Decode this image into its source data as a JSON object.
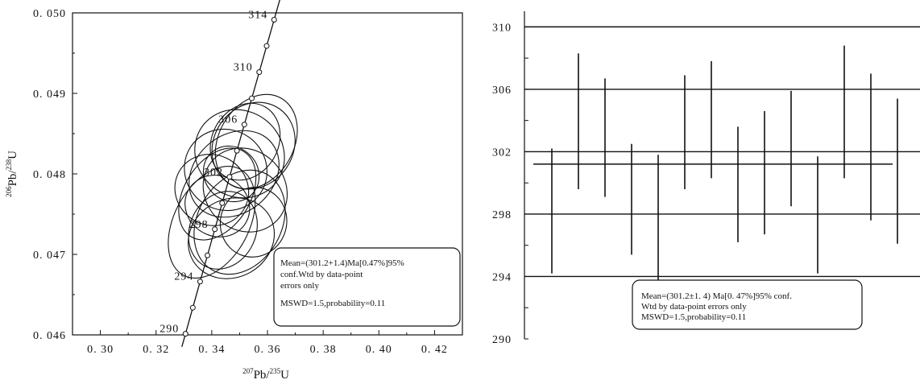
{
  "chart_data": [
    {
      "type": "scatter",
      "subtype": "concordia",
      "xlabel_parts": [
        "207",
        "Pb/",
        "235",
        "U"
      ],
      "ylabel_parts": [
        "206",
        "Pb/",
        "238",
        "U"
      ],
      "xlim": [
        0.29,
        0.43
      ],
      "ylim": [
        0.046,
        0.05
      ],
      "x_ticks": [
        "0. 30",
        "0. 32",
        "0. 34",
        "0. 36",
        "0. 38",
        "0. 40",
        "0. 42"
      ],
      "y_ticks": [
        "0. 046",
        "0. 047",
        "0. 048",
        "0. 049",
        "0. 050"
      ],
      "concordia_ages_ma": [
        290,
        292,
        294,
        296,
        298,
        300,
        302,
        304,
        306,
        308,
        310,
        312,
        314
      ],
      "concordia_age_labels": [
        "290",
        "294",
        "298",
        "302",
        "306",
        "310",
        "314"
      ],
      "ellipses": [
        {
          "x": 0.345,
          "y": 0.04805,
          "rx": 0.016,
          "ry": 0.0008,
          "tilt": 55
        },
        {
          "x": 0.35,
          "y": 0.04825,
          "rx": 0.017,
          "ry": 0.0009,
          "tilt": 50
        },
        {
          "x": 0.355,
          "y": 0.04835,
          "rx": 0.018,
          "ry": 0.00075,
          "tilt": 55
        },
        {
          "x": 0.34,
          "y": 0.0478,
          "rx": 0.014,
          "ry": 0.0007,
          "tilt": 60
        },
        {
          "x": 0.356,
          "y": 0.0484,
          "rx": 0.02,
          "ry": 0.0007,
          "tilt": 60
        },
        {
          "x": 0.348,
          "y": 0.048,
          "rx": 0.013,
          "ry": 0.0011,
          "tilt": 40
        },
        {
          "x": 0.342,
          "y": 0.0476,
          "rx": 0.012,
          "ry": 0.0006,
          "tilt": 60
        },
        {
          "x": 0.352,
          "y": 0.0478,
          "rx": 0.015,
          "ry": 0.0009,
          "tilt": 45
        },
        {
          "x": 0.35,
          "y": 0.0474,
          "rx": 0.022,
          "ry": 0.0008,
          "tilt": 60
        },
        {
          "x": 0.344,
          "y": 0.0473,
          "rx": 0.016,
          "ry": 0.0006,
          "tilt": 65
        },
        {
          "x": 0.347,
          "y": 0.0472,
          "rx": 0.013,
          "ry": 0.001,
          "tilt": 30
        },
        {
          "x": 0.355,
          "y": 0.0474,
          "rx": 0.014,
          "ry": 0.0006,
          "tilt": 70
        },
        {
          "x": 0.34,
          "y": 0.0474,
          "rx": 0.024,
          "ry": 0.0007,
          "tilt": 62
        },
        {
          "x": 0.347,
          "y": 0.048,
          "rx": 0.009,
          "ry": 0.0006,
          "tilt": 45
        },
        {
          "x": 0.352,
          "y": 0.0484,
          "rx": 0.016,
          "ry": 0.0006,
          "tilt": 60
        },
        {
          "x": 0.342,
          "y": 0.04775,
          "rx": 0.02,
          "ry": 0.0006,
          "tilt": 58
        }
      ],
      "annotation_lines": [
        "Mean=(301.2+1.4)Ma[0.47%]95%",
        "conf.Wtd by data-point",
        "errors only",
        "MSWD=1.5,probability=0.11"
      ],
      "grid": false
    },
    {
      "type": "bar",
      "subtype": "weighted-mean error bars",
      "ylim": [
        290,
        311
      ],
      "y_ticks": [
        "290",
        "294",
        "298",
        "302",
        "306",
        "310"
      ],
      "bars": [
        {
          "low": 294.2,
          "high": 302.2
        },
        {
          "low": 299.6,
          "high": 308.3
        },
        {
          "low": 299.1,
          "high": 306.7
        },
        {
          "low": 295.4,
          "high": 302.5
        },
        {
          "low": 293.6,
          "high": 301.8
        },
        {
          "low": 299.6,
          "high": 306.9
        },
        {
          "low": 300.3,
          "high": 307.8
        },
        {
          "low": 296.2,
          "high": 303.6
        },
        {
          "low": 296.7,
          "high": 304.6
        },
        {
          "low": 298.5,
          "high": 305.9
        },
        {
          "low": 294.2,
          "high": 301.7
        },
        {
          "low": 300.3,
          "high": 308.8
        },
        {
          "low": 297.6,
          "high": 307.0
        },
        {
          "low": 296.1,
          "high": 305.4
        }
      ],
      "mean": 301.2,
      "horizontal_lines": [
        294,
        298,
        302,
        306,
        310
      ],
      "annotation_lines": [
        "Mean=(301.2±1. 4) Ma[0. 47%]95% conf.",
        "Wtd by data-point errors only",
        "MSWD=1.5,probability=0.11"
      ],
      "grid": false
    }
  ]
}
